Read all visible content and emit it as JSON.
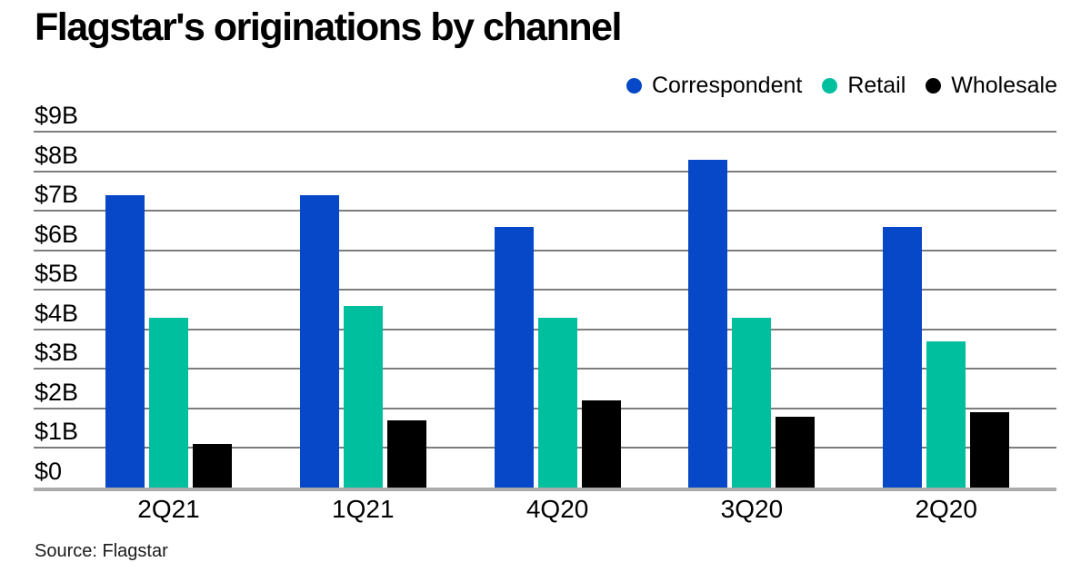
{
  "title": "Flagstar's originations by channel",
  "source_note": "Source: Flagstar",
  "colors": {
    "correspondent": "#0748c8",
    "retail": "#00bf9f",
    "wholesale": "#000000",
    "gridline": "#7d7d7d",
    "baseline": "#ababab",
    "text": "#000000",
    "background": "#ffffff"
  },
  "chart_data": {
    "type": "bar",
    "title": "Flagstar's originations by channel",
    "categories": [
      "2Q21",
      "1Q21",
      "4Q20",
      "3Q20",
      "2Q20"
    ],
    "series": [
      {
        "name": "Correspondent",
        "color_key": "correspondent",
        "values": [
          7.4,
          7.4,
          6.6,
          8.3,
          6.6
        ]
      },
      {
        "name": "Retail",
        "color_key": "retail",
        "values": [
          4.3,
          4.6,
          4.3,
          4.3,
          3.7
        ]
      },
      {
        "name": "Wholesale",
        "color_key": "wholesale",
        "values": [
          1.1,
          1.7,
          2.2,
          1.8,
          1.9
        ]
      }
    ],
    "yticks": [
      "$9B",
      "$8B",
      "$7B",
      "$6B",
      "$5B",
      "$4B",
      "$3B",
      "$2B",
      "$1B",
      "$0"
    ],
    "ylim": [
      0,
      9
    ],
    "xlabel": "",
    "ylabel": "",
    "grid": true,
    "legend_position": "top-right"
  }
}
